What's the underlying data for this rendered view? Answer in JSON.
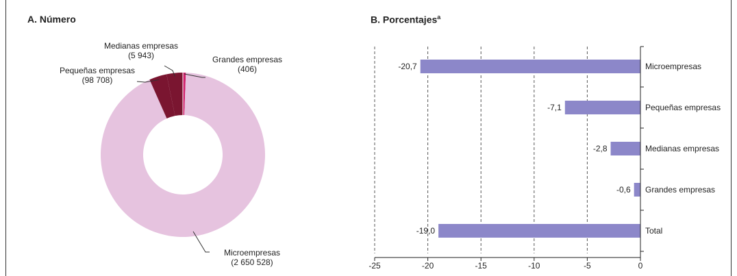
{
  "panel_a": {
    "title": "A. Número"
  },
  "panel_b": {
    "title": "B. Porcentajes",
    "title_sup": "a"
  },
  "colors": {
    "micro": "#e6c3df",
    "pequenas": "#7a1530",
    "medianas": "#7a1530",
    "grandes": "#d0216b",
    "bars": "#8c87c9"
  },
  "chart_data": [
    {
      "type": "pie",
      "donut": true,
      "title": "A. Número",
      "labels": [
        "Microempresas",
        "Pequeñas empresas",
        "Medianas empresas",
        "Grandes empresas"
      ],
      "value_labels": [
        "(2 650 528)",
        "(98 708)",
        "(5 943)",
        "(406)"
      ],
      "values": [
        2650528,
        98708,
        5943,
        406
      ]
    },
    {
      "type": "bar",
      "orientation": "horizontal",
      "title": "B. Porcentajes",
      "title_sup": "a",
      "categories": [
        "Microempresas",
        "Pequeñas empresas",
        "Medianas empresas",
        "Grandes empresas",
        "Total"
      ],
      "values": [
        -20.7,
        -7.1,
        -2.8,
        -0.6,
        -19.0
      ],
      "value_labels": [
        "-20,7",
        "-7,1",
        "-2,8",
        "-0,6",
        "-19,0"
      ],
      "xlim": [
        -25,
        0
      ],
      "xticks": [
        -25,
        -20,
        -15,
        -10,
        -5,
        0
      ],
      "xtick_labels": [
        "-25",
        "-20",
        "-15",
        "-10",
        "-5",
        "0"
      ],
      "grid": "vertical dashed"
    }
  ]
}
